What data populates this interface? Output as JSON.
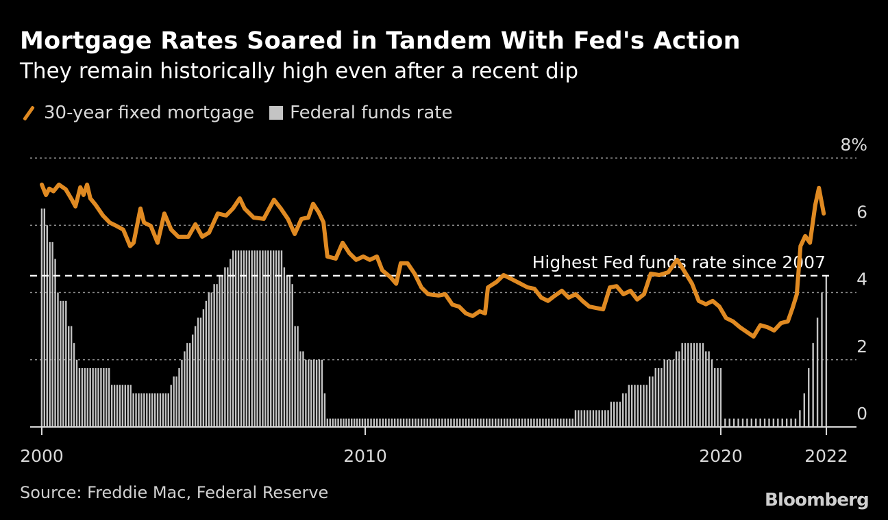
{
  "header": {
    "title": "Mortgage Rates Soared in Tandem With Fed's Action",
    "subtitle": "They remain historically high even after a recent dip"
  },
  "legend": [
    {
      "label": "30-year fixed mortgage",
      "icon": "line-swatch",
      "color": "#e08a22"
    },
    {
      "label": "Federal funds rate",
      "icon": "square-swatch",
      "color": "#c4c4c4"
    }
  ],
  "footer": {
    "source": "Source: Freddie Mac, Federal Reserve",
    "logo": "Bloomberg"
  },
  "chart_data": {
    "type": "line+bar",
    "title": "Mortgage Rates Soared in Tandem With Fed's Action",
    "subtitle": "They remain historically high even after a recent dip",
    "ylim": [
      0,
      8
    ],
    "y_ticks": [
      {
        "value": 8,
        "label": "8%"
      },
      {
        "value": 6,
        "label": "6"
      },
      {
        "value": 4,
        "label": "4"
      },
      {
        "value": 2,
        "label": "2"
      },
      {
        "value": 0,
        "label": "0"
      }
    ],
    "x_ticks": [
      {
        "value": 2000,
        "label": "2000"
      },
      {
        "value": 2010,
        "label": "2010"
      },
      {
        "value": 2020,
        "label": "2020"
      },
      {
        "value": 2022,
        "label": "2022"
      }
    ],
    "grid": true,
    "legend_position": "top-left",
    "annotation": {
      "label": "Highest Fed funds rate since 2007",
      "value": 4.5
    },
    "series": [
      {
        "name": "30-year fixed mortgage",
        "type": "line",
        "color": "#e08a22",
        "points": [
          [
            2000.0,
            7.21
          ],
          [
            2000.13,
            6.9
          ],
          [
            2000.23,
            7.09
          ],
          [
            2000.36,
            7.01
          ],
          [
            2000.53,
            7.21
          ],
          [
            2000.74,
            7.07
          ],
          [
            2000.93,
            6.76
          ],
          [
            2001.04,
            6.56
          ],
          [
            2001.19,
            7.13
          ],
          [
            2001.29,
            6.9
          ],
          [
            2001.4,
            7.21
          ],
          [
            2001.5,
            6.8
          ],
          [
            2001.67,
            6.6
          ],
          [
            2001.89,
            6.29
          ],
          [
            2002.1,
            6.08
          ],
          [
            2002.31,
            5.98
          ],
          [
            2002.52,
            5.87
          ],
          [
            2002.73,
            5.38
          ],
          [
            2002.84,
            5.48
          ],
          [
            2003.05,
            6.5
          ],
          [
            2003.16,
            6.08
          ],
          [
            2003.37,
            5.98
          ],
          [
            2003.58,
            5.48
          ],
          [
            2003.79,
            6.35
          ],
          [
            2004.0,
            5.87
          ],
          [
            2004.22,
            5.66
          ],
          [
            2004.53,
            5.66
          ],
          [
            2004.75,
            6.03
          ],
          [
            2004.96,
            5.66
          ],
          [
            2005.17,
            5.78
          ],
          [
            2005.44,
            6.35
          ],
          [
            2005.7,
            6.29
          ],
          [
            2005.91,
            6.5
          ],
          [
            2006.12,
            6.8
          ],
          [
            2006.27,
            6.5
          ],
          [
            2006.55,
            6.23
          ],
          [
            2006.86,
            6.19
          ],
          [
            2007.18,
            6.76
          ],
          [
            2007.39,
            6.5
          ],
          [
            2007.61,
            6.19
          ],
          [
            2007.82,
            5.74
          ],
          [
            2008.03,
            6.19
          ],
          [
            2008.24,
            6.23
          ],
          [
            2008.39,
            6.64
          ],
          [
            2008.56,
            6.39
          ],
          [
            2008.71,
            6.09
          ],
          [
            2008.83,
            5.07
          ],
          [
            2009.09,
            5.01
          ],
          [
            2009.3,
            5.48
          ],
          [
            2009.51,
            5.17
          ],
          [
            2009.72,
            4.97
          ],
          [
            2009.94,
            5.07
          ],
          [
            2010.13,
            4.97
          ],
          [
            2010.33,
            5.07
          ],
          [
            2010.48,
            4.66
          ],
          [
            2010.71,
            4.46
          ],
          [
            2010.87,
            4.26
          ],
          [
            2011.0,
            4.87
          ],
          [
            2011.19,
            4.87
          ],
          [
            2011.39,
            4.56
          ],
          [
            2011.58,
            4.15
          ],
          [
            2011.77,
            3.95
          ],
          [
            2012.06,
            3.91
          ],
          [
            2012.25,
            3.95
          ],
          [
            2012.45,
            3.64
          ],
          [
            2012.64,
            3.58
          ],
          [
            2012.83,
            3.38
          ],
          [
            2013.02,
            3.3
          ],
          [
            2013.22,
            3.44
          ],
          [
            2013.37,
            3.38
          ],
          [
            2013.45,
            4.15
          ],
          [
            2013.7,
            4.32
          ],
          [
            2013.89,
            4.52
          ],
          [
            2014.08,
            4.42
          ],
          [
            2014.37,
            4.26
          ],
          [
            2014.57,
            4.15
          ],
          [
            2014.76,
            4.11
          ],
          [
            2014.95,
            3.85
          ],
          [
            2015.14,
            3.75
          ],
          [
            2015.34,
            3.91
          ],
          [
            2015.53,
            4.05
          ],
          [
            2015.72,
            3.85
          ],
          [
            2015.92,
            3.95
          ],
          [
            2016.11,
            3.75
          ],
          [
            2016.3,
            3.58
          ],
          [
            2016.49,
            3.54
          ],
          [
            2016.69,
            3.5
          ],
          [
            2016.88,
            4.15
          ],
          [
            2017.07,
            4.19
          ],
          [
            2017.26,
            3.95
          ],
          [
            2017.46,
            4.05
          ],
          [
            2017.65,
            3.79
          ],
          [
            2017.84,
            3.95
          ],
          [
            2018.03,
            4.56
          ],
          [
            2018.27,
            4.52
          ],
          [
            2018.52,
            4.6
          ],
          [
            2018.77,
            4.97
          ],
          [
            2018.96,
            4.66
          ],
          [
            2019.19,
            4.26
          ],
          [
            2019.38,
            3.75
          ],
          [
            2019.58,
            3.65
          ],
          [
            2019.77,
            3.75
          ],
          [
            2019.96,
            3.58
          ],
          [
            2020.1,
            3.24
          ],
          [
            2020.23,
            3.14
          ],
          [
            2020.36,
            2.97
          ],
          [
            2020.49,
            2.83
          ],
          [
            2020.62,
            2.69
          ],
          [
            2020.75,
            3.03
          ],
          [
            2020.88,
            2.97
          ],
          [
            2021.01,
            2.87
          ],
          [
            2021.14,
            3.09
          ],
          [
            2021.27,
            3.14
          ],
          [
            2021.36,
            3.54
          ],
          [
            2021.44,
            3.95
          ],
          [
            2021.51,
            5.38
          ],
          [
            2021.6,
            5.68
          ],
          [
            2021.69,
            5.48
          ],
          [
            2021.79,
            6.6
          ],
          [
            2021.86,
            7.11
          ],
          [
            2021.95,
            6.35
          ]
        ]
      },
      {
        "name": "Federal funds rate",
        "type": "bar",
        "color": "#c4c4c4",
        "frequency": "monthly",
        "end": 2022.0,
        "steps": [
          [
            2000.0,
            6.5
          ],
          [
            2000.11,
            6.0
          ],
          [
            2000.19,
            5.5
          ],
          [
            2000.36,
            5.0
          ],
          [
            2000.47,
            4.0
          ],
          [
            2000.57,
            3.75
          ],
          [
            2000.76,
            3.5
          ],
          [
            2000.83,
            3.0
          ],
          [
            2000.93,
            2.5
          ],
          [
            2001.04,
            2.0
          ],
          [
            2001.1,
            1.75
          ],
          [
            2002.12,
            1.25
          ],
          [
            2002.8,
            1.0
          ],
          [
            2003.96,
            1.25
          ],
          [
            2004.07,
            1.5
          ],
          [
            2004.17,
            1.75
          ],
          [
            2004.28,
            2.0
          ],
          [
            2004.39,
            2.25
          ],
          [
            2004.49,
            2.5
          ],
          [
            2004.6,
            2.75
          ],
          [
            2004.7,
            3.0
          ],
          [
            2004.81,
            3.25
          ],
          [
            2004.92,
            3.5
          ],
          [
            2005.02,
            3.75
          ],
          [
            2005.13,
            4.0
          ],
          [
            2005.28,
            4.25
          ],
          [
            2005.44,
            4.5
          ],
          [
            2005.59,
            4.75
          ],
          [
            2005.76,
            5.0
          ],
          [
            2005.91,
            5.25
          ],
          [
            2007.46,
            4.75
          ],
          [
            2007.56,
            4.5
          ],
          [
            2007.67,
            4.25
          ],
          [
            2007.78,
            3.0
          ],
          [
            2007.99,
            2.25
          ],
          [
            2008.09,
            2.0
          ],
          [
            2008.69,
            1.0
          ],
          [
            2008.79,
            0.25
          ],
          [
            2015.88,
            0.5
          ],
          [
            2016.88,
            0.75
          ],
          [
            2017.17,
            1.0
          ],
          [
            2017.4,
            1.25
          ],
          [
            2017.92,
            1.5
          ],
          [
            2018.15,
            1.75
          ],
          [
            2018.38,
            2.0
          ],
          [
            2018.67,
            2.25
          ],
          [
            2018.9,
            2.5
          ],
          [
            2019.54,
            2.25
          ],
          [
            2019.67,
            2.0
          ],
          [
            2019.77,
            1.75
          ],
          [
            2020.08,
            0.25
          ],
          [
            2021.44,
            0.5
          ],
          [
            2021.53,
            1.0
          ],
          [
            2021.61,
            1.75
          ],
          [
            2021.69,
            2.5
          ],
          [
            2021.79,
            3.25
          ],
          [
            2021.88,
            4.0
          ],
          [
            2021.97,
            4.5
          ]
        ]
      }
    ]
  }
}
